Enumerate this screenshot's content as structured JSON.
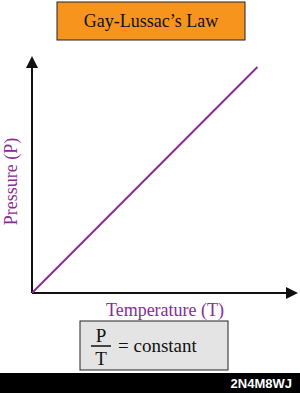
{
  "chart_data": {
    "type": "line",
    "title": "Gay-Lussac’s Law",
    "x_label": "Temperature (T)",
    "y_label": "Pressure (P)",
    "x": [
      0,
      1
    ],
    "values": [
      0,
      1
    ],
    "color": "#8a2c96",
    "xlim": [
      0,
      1.18
    ],
    "ylim": [
      0,
      1.04
    ],
    "tick_labels": false,
    "grid": false,
    "formula": {
      "numerator": "P",
      "denominator": "T",
      "text": "= constant"
    },
    "watermark": "2N4M8WJ"
  }
}
